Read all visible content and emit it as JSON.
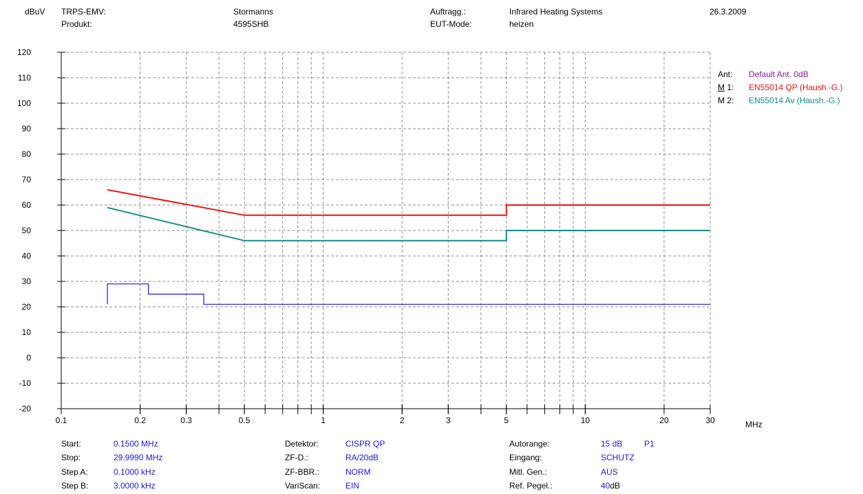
{
  "header": {
    "unit": "dBuV",
    "col1": {
      "label1": "TRPS-EMV:",
      "label2": "Produkt:"
    },
    "col2": {
      "value1": "Stormanns",
      "value2": "4595SHB"
    },
    "col3": {
      "label1": "Auftragg.:",
      "label2": "EUT-Mode:"
    },
    "col4": {
      "value1": "Infrared Heating Systems",
      "value2": "heizen"
    },
    "date": "26.3.2009"
  },
  "legend": [
    {
      "key": "Ant:",
      "text": "Default Ant. 0dB",
      "color": "#8a1a9a",
      "underline_chars": ""
    },
    {
      "key_u": "M",
      "key_rest": " 1:",
      "text": "EN55014 QP (Haush.-G.)",
      "color": "#ee1111"
    },
    {
      "key": "M 2:",
      "text": "EN55014 Av (Haush.-G.)",
      "color": "#138a8a"
    }
  ],
  "chart_data": {
    "type": "line",
    "x_scale": "log",
    "xlim": [
      0.1,
      30
    ],
    "ylim": [
      -20,
      120
    ],
    "x_unit": "MHz",
    "y_unit": "dBuV",
    "grid": true,
    "x_ticks": [
      0.1,
      0.2,
      0.3,
      0.5,
      1,
      2,
      3,
      5,
      10,
      20,
      30
    ],
    "x_tick_labels": [
      "0.1",
      "0.2",
      "0.3",
      "0.5",
      "1",
      "2",
      "3",
      "5",
      "10",
      "20",
      "30"
    ],
    "y_ticks": [
      120,
      110,
      100,
      90,
      80,
      70,
      60,
      50,
      40,
      30,
      20,
      10,
      0,
      -10,
      -20
    ],
    "series": [
      {
        "name": "EN55014 QP (Haush.-G.)",
        "color": "#ee1111",
        "width": 2,
        "x": [
          0.15,
          0.5,
          5,
          5,
          30
        ],
        "y": [
          66,
          56,
          56,
          60,
          60
        ]
      },
      {
        "name": "EN55014 Av (Haush.-G.)",
        "color": "#138a8a",
        "width": 2,
        "x": [
          0.15,
          0.5,
          5,
          5,
          30
        ],
        "y": [
          59,
          46,
          46,
          50,
          50
        ]
      },
      {
        "color": "#1818e0",
        "width": 1.2,
        "x": [
          0.15,
          0.15,
          0.215,
          0.215,
          0.35,
          0.35,
          30
        ],
        "y": [
          21,
          29,
          29,
          25,
          25,
          21,
          21
        ]
      }
    ]
  },
  "settings": {
    "left": [
      {
        "label": "Start:",
        "value": "0.1500 MHz"
      },
      {
        "label": "Stop:",
        "value": "29.9990 MHz"
      },
      {
        "label": "Step A:",
        "value": "0.1000 kHz"
      },
      {
        "label": "Step B:",
        "value": "3.0000 kHz"
      }
    ],
    "middle": [
      {
        "label": "Detektor:",
        "value": "CISPR QP"
      },
      {
        "label": "ZF-D.:",
        "value": "RA/20dB"
      },
      {
        "label": "ZF-BBR.:",
        "value": "NORM"
      },
      {
        "label": "VariScan:",
        "value": "EIN"
      }
    ],
    "right": [
      {
        "label": "Autorange:",
        "value": "15 dB",
        "extra": "P1"
      },
      {
        "label": "Eingang:",
        "value": "SCHUTZ",
        "extra": ""
      },
      {
        "label": "Mitl. Gen.:",
        "value": "AUS",
        "extra": ""
      },
      {
        "label": "Ref. Pegel.:",
        "value": "40",
        "value_unit": "dB",
        "extra": ""
      }
    ]
  }
}
